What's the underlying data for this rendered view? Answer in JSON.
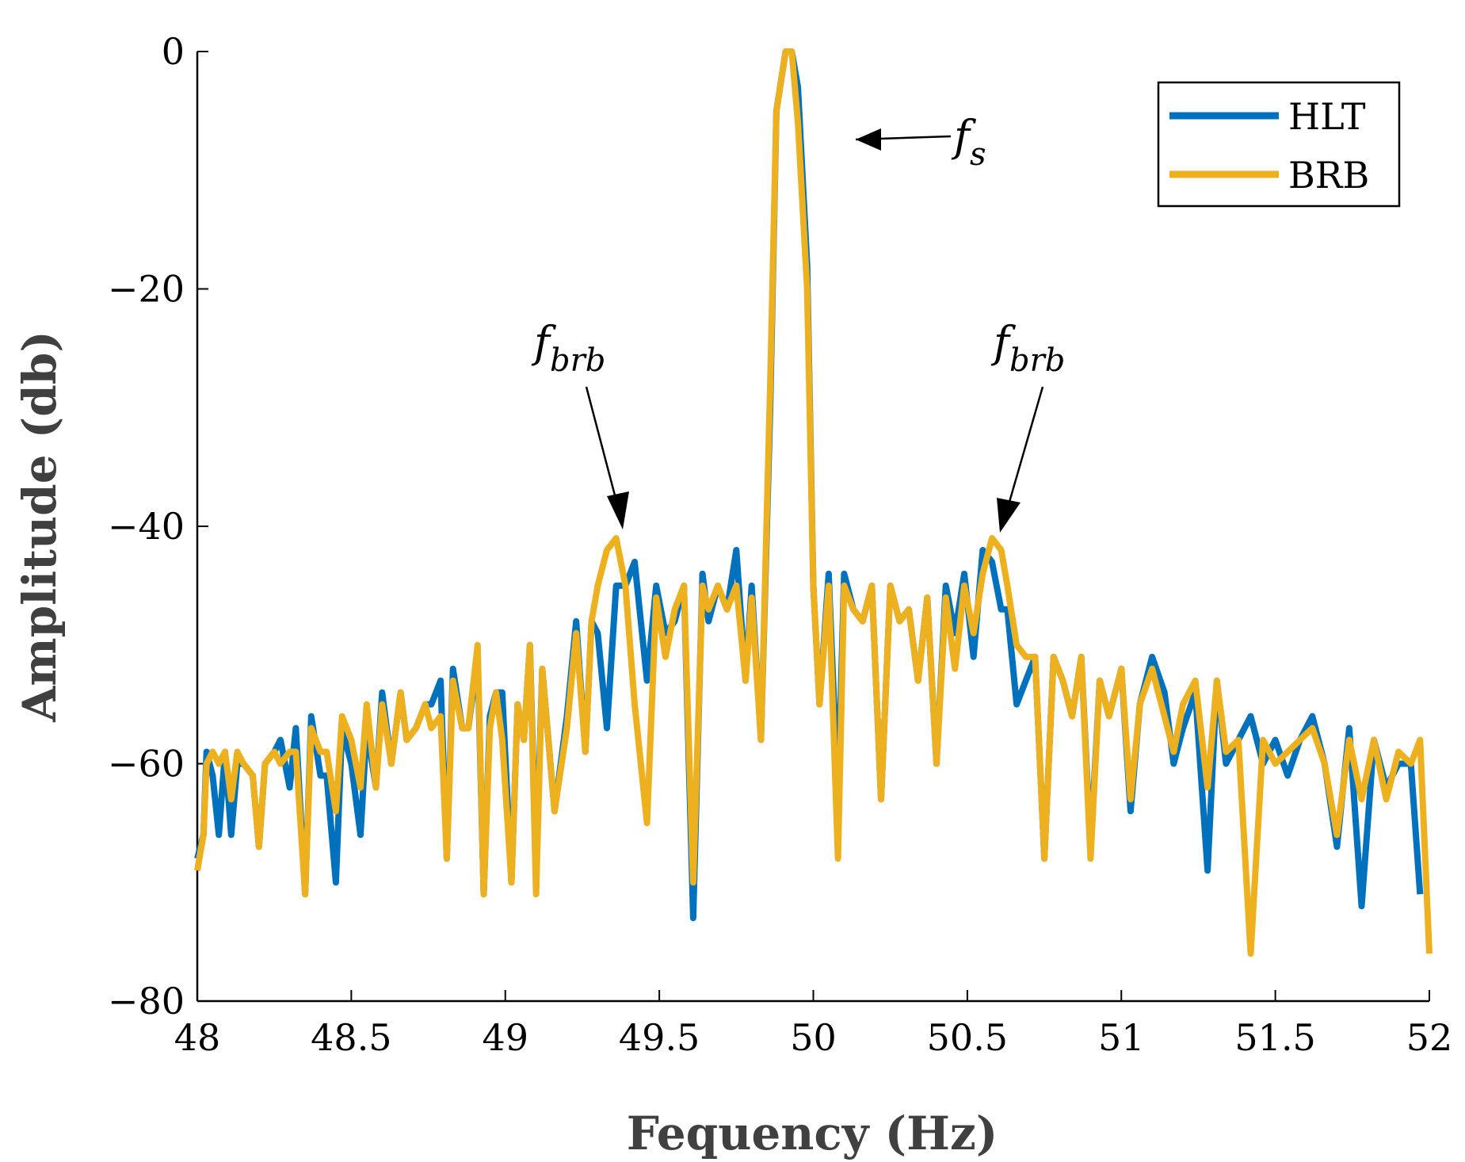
{
  "chart_data": {
    "type": "line",
    "title": "",
    "xlabel": "Fequency (Hz)",
    "ylabel": "Amplitude (db)",
    "xlim": [
      48,
      52
    ],
    "ylim": [
      -80,
      0
    ],
    "xticks": [
      48,
      48.5,
      49,
      49.5,
      50,
      50.5,
      51,
      51.5,
      52
    ],
    "xtick_labels": [
      "48",
      "48.5",
      "49",
      "49.5",
      "50",
      "50.5",
      "51",
      "51.5",
      "52"
    ],
    "yticks": [
      0,
      -20,
      -40,
      -60,
      -80
    ],
    "ytick_labels": [
      "0",
      "−20",
      "−40",
      "−60",
      "−80"
    ],
    "grid": false,
    "legend_position": "top-right",
    "series": [
      {
        "name": "HLT",
        "color": "#0072BD",
        "points": [
          [
            48.0,
            -68
          ],
          [
            48.02,
            -66
          ],
          [
            48.03,
            -59
          ],
          [
            48.05,
            -61
          ],
          [
            48.07,
            -66
          ],
          [
            48.09,
            -59
          ],
          [
            48.11,
            -66
          ],
          [
            48.13,
            -60
          ],
          [
            48.15,
            -60
          ],
          [
            48.18,
            -61
          ],
          [
            48.2,
            -67
          ],
          [
            48.22,
            -60
          ],
          [
            48.25,
            -59
          ],
          [
            48.27,
            -58
          ],
          [
            48.3,
            -62
          ],
          [
            48.32,
            -57
          ],
          [
            48.35,
            -71
          ],
          [
            48.37,
            -56
          ],
          [
            48.4,
            -61
          ],
          [
            48.42,
            -61
          ],
          [
            48.45,
            -70
          ],
          [
            48.47,
            -57
          ],
          [
            48.5,
            -60
          ],
          [
            48.53,
            -66
          ],
          [
            48.55,
            -57
          ],
          [
            48.58,
            -62
          ],
          [
            48.6,
            -54
          ],
          [
            48.63,
            -60
          ],
          [
            48.66,
            -54
          ],
          [
            48.68,
            -58
          ],
          [
            48.71,
            -57
          ],
          [
            48.74,
            -55
          ],
          [
            48.76,
            -55
          ],
          [
            48.79,
            -53
          ],
          [
            48.81,
            -68
          ],
          [
            48.83,
            -52
          ],
          [
            48.86,
            -57
          ],
          [
            48.88,
            -57
          ],
          [
            48.91,
            -51
          ],
          [
            48.93,
            -71
          ],
          [
            48.95,
            -56
          ],
          [
            48.97,
            -54
          ],
          [
            48.99,
            -54
          ],
          [
            49.02,
            -70
          ],
          [
            49.04,
            -55
          ],
          [
            49.06,
            -58
          ],
          [
            49.08,
            -50
          ],
          [
            49.1,
            -69
          ],
          [
            49.12,
            -52
          ],
          [
            49.16,
            -64
          ],
          [
            49.2,
            -56
          ],
          [
            49.23,
            -48
          ],
          [
            49.26,
            -59
          ],
          [
            49.28,
            -48
          ],
          [
            49.3,
            -49
          ],
          [
            49.33,
            -57
          ],
          [
            49.36,
            -45
          ],
          [
            49.39,
            -45
          ],
          [
            49.42,
            -43
          ],
          [
            49.46,
            -53
          ],
          [
            49.49,
            -45
          ],
          [
            49.52,
            -49
          ],
          [
            49.55,
            -48
          ],
          [
            49.58,
            -45
          ],
          [
            49.61,
            -73
          ],
          [
            49.64,
            -44
          ],
          [
            49.66,
            -48
          ],
          [
            49.69,
            -45
          ],
          [
            49.72,
            -47
          ],
          [
            49.75,
            -42
          ],
          [
            49.78,
            -53
          ],
          [
            49.8,
            -45
          ],
          [
            49.83,
            -58
          ],
          [
            49.86,
            -30
          ],
          [
            49.88,
            -5
          ],
          [
            49.91,
            0
          ],
          [
            49.93,
            0
          ],
          [
            49.95,
            -3
          ],
          [
            49.98,
            -18
          ],
          [
            50.0,
            -45
          ],
          [
            50.02,
            -55
          ],
          [
            50.05,
            -44
          ],
          [
            50.08,
            -63
          ],
          [
            50.1,
            -44
          ],
          [
            50.13,
            -47
          ],
          [
            50.16,
            -48
          ],
          [
            50.19,
            -45
          ],
          [
            50.22,
            -63
          ],
          [
            50.25,
            -45
          ],
          [
            50.28,
            -48
          ],
          [
            50.31,
            -47
          ],
          [
            50.34,
            -53
          ],
          [
            50.37,
            -46
          ],
          [
            50.4,
            -60
          ],
          [
            50.43,
            -45
          ],
          [
            50.46,
            -49
          ],
          [
            50.49,
            -44
          ],
          [
            50.52,
            -51
          ],
          [
            50.55,
            -42
          ],
          [
            50.58,
            -43
          ],
          [
            50.61,
            -47
          ],
          [
            50.63,
            -47
          ],
          [
            50.66,
            -55
          ],
          [
            50.69,
            -53
          ],
          [
            50.72,
            -51
          ],
          [
            50.75,
            -68
          ],
          [
            50.78,
            -51
          ],
          [
            50.81,
            -53
          ],
          [
            50.84,
            -56
          ],
          [
            50.87,
            -51
          ],
          [
            50.9,
            -67
          ],
          [
            50.93,
            -53
          ],
          [
            50.96,
            -56
          ],
          [
            51.0,
            -52
          ],
          [
            51.03,
            -64
          ],
          [
            51.06,
            -55
          ],
          [
            51.1,
            -51
          ],
          [
            51.14,
            -54
          ],
          [
            51.17,
            -60
          ],
          [
            51.2,
            -57
          ],
          [
            51.24,
            -54
          ],
          [
            51.28,
            -69
          ],
          [
            51.31,
            -53
          ],
          [
            51.34,
            -60
          ],
          [
            51.38,
            -58
          ],
          [
            51.42,
            -56
          ],
          [
            51.46,
            -60
          ],
          [
            51.5,
            -58
          ],
          [
            51.54,
            -61
          ],
          [
            51.58,
            -58
          ],
          [
            51.62,
            -56
          ],
          [
            51.66,
            -60
          ],
          [
            51.7,
            -67
          ],
          [
            51.74,
            -57
          ],
          [
            51.78,
            -72
          ],
          [
            51.82,
            -58
          ],
          [
            51.86,
            -62
          ],
          [
            51.9,
            -60
          ],
          [
            51.94,
            -60
          ],
          [
            51.97,
            -71
          ]
        ]
      },
      {
        "name": "BRB",
        "color": "#EDB120",
        "points": [
          [
            48.0,
            -69
          ],
          [
            48.02,
            -66
          ],
          [
            48.03,
            -60
          ],
          [
            48.05,
            -59
          ],
          [
            48.07,
            -60
          ],
          [
            48.09,
            -59
          ],
          [
            48.11,
            -63
          ],
          [
            48.13,
            -59
          ],
          [
            48.15,
            -60
          ],
          [
            48.18,
            -61
          ],
          [
            48.2,
            -67
          ],
          [
            48.22,
            -60
          ],
          [
            48.25,
            -59
          ],
          [
            48.27,
            -60
          ],
          [
            48.3,
            -59
          ],
          [
            48.32,
            -59
          ],
          [
            48.35,
            -71
          ],
          [
            48.37,
            -57
          ],
          [
            48.4,
            -59
          ],
          [
            48.42,
            -59
          ],
          [
            48.45,
            -64
          ],
          [
            48.47,
            -56
          ],
          [
            48.5,
            -58
          ],
          [
            48.53,
            -62
          ],
          [
            48.55,
            -55
          ],
          [
            48.58,
            -62
          ],
          [
            48.6,
            -55
          ],
          [
            48.63,
            -60
          ],
          [
            48.66,
            -54
          ],
          [
            48.68,
            -58
          ],
          [
            48.71,
            -57
          ],
          [
            48.74,
            -55
          ],
          [
            48.76,
            -57
          ],
          [
            48.79,
            -56
          ],
          [
            48.81,
            -68
          ],
          [
            48.83,
            -53
          ],
          [
            48.86,
            -57
          ],
          [
            48.88,
            -57
          ],
          [
            48.91,
            -50
          ],
          [
            48.93,
            -71
          ],
          [
            48.95,
            -57
          ],
          [
            48.97,
            -54
          ],
          [
            48.99,
            -58
          ],
          [
            49.02,
            -70
          ],
          [
            49.04,
            -55
          ],
          [
            49.06,
            -58
          ],
          [
            49.08,
            -50
          ],
          [
            49.1,
            -71
          ],
          [
            49.12,
            -52
          ],
          [
            49.16,
            -64
          ],
          [
            49.2,
            -57
          ],
          [
            49.23,
            -49
          ],
          [
            49.26,
            -59
          ],
          [
            49.28,
            -48
          ],
          [
            49.3,
            -45
          ],
          [
            49.33,
            -42
          ],
          [
            49.36,
            -41
          ],
          [
            49.39,
            -45
          ],
          [
            49.42,
            -55
          ],
          [
            49.46,
            -65
          ],
          [
            49.49,
            -46
          ],
          [
            49.52,
            -51
          ],
          [
            49.55,
            -47
          ],
          [
            49.58,
            -45
          ],
          [
            49.61,
            -70
          ],
          [
            49.64,
            -45
          ],
          [
            49.66,
            -47
          ],
          [
            49.69,
            -45
          ],
          [
            49.72,
            -47
          ],
          [
            49.75,
            -45
          ],
          [
            49.78,
            -53
          ],
          [
            49.8,
            -46
          ],
          [
            49.83,
            -58
          ],
          [
            49.86,
            -28
          ],
          [
            49.88,
            -5
          ],
          [
            49.91,
            0
          ],
          [
            49.93,
            0
          ],
          [
            49.95,
            -6
          ],
          [
            49.98,
            -20
          ],
          [
            50.0,
            -45
          ],
          [
            50.02,
            -55
          ],
          [
            50.05,
            -45
          ],
          [
            50.08,
            -68
          ],
          [
            50.1,
            -45
          ],
          [
            50.13,
            -47
          ],
          [
            50.16,
            -48
          ],
          [
            50.19,
            -45
          ],
          [
            50.22,
            -63
          ],
          [
            50.25,
            -45
          ],
          [
            50.28,
            -48
          ],
          [
            50.31,
            -47
          ],
          [
            50.34,
            -53
          ],
          [
            50.37,
            -46
          ],
          [
            50.4,
            -60
          ],
          [
            50.43,
            -46
          ],
          [
            50.46,
            -52
          ],
          [
            50.49,
            -45
          ],
          [
            50.52,
            -49
          ],
          [
            50.55,
            -44
          ],
          [
            50.58,
            -41
          ],
          [
            50.61,
            -42
          ],
          [
            50.63,
            -45
          ],
          [
            50.66,
            -50
          ],
          [
            50.69,
            -51
          ],
          [
            50.72,
            -51
          ],
          [
            50.75,
            -68
          ],
          [
            50.78,
            -51
          ],
          [
            50.81,
            -53
          ],
          [
            50.84,
            -56
          ],
          [
            50.87,
            -51
          ],
          [
            50.9,
            -68
          ],
          [
            50.93,
            -53
          ],
          [
            50.96,
            -56
          ],
          [
            51.0,
            -52
          ],
          [
            51.03,
            -63
          ],
          [
            51.06,
            -55
          ],
          [
            51.1,
            -52
          ],
          [
            51.14,
            -56
          ],
          [
            51.17,
            -59
          ],
          [
            51.2,
            -55
          ],
          [
            51.24,
            -53
          ],
          [
            51.28,
            -62
          ],
          [
            51.31,
            -53
          ],
          [
            51.34,
            -59
          ],
          [
            51.38,
            -58
          ],
          [
            51.42,
            -76
          ],
          [
            51.46,
            -58
          ],
          [
            51.5,
            -60
          ],
          [
            51.54,
            -59
          ],
          [
            51.58,
            -58
          ],
          [
            51.62,
            -57
          ],
          [
            51.66,
            -60
          ],
          [
            51.7,
            -66
          ],
          [
            51.74,
            -58
          ],
          [
            51.78,
            -63
          ],
          [
            51.82,
            -58
          ],
          [
            51.86,
            -63
          ],
          [
            51.9,
            -59
          ],
          [
            51.94,
            -60
          ],
          [
            51.97,
            -58
          ],
          [
            52.0,
            -76
          ]
        ]
      }
    ],
    "annotations": [
      {
        "base": "f",
        "sub": "s",
        "points_to": [
          50.13,
          -7.5
        ]
      },
      {
        "base": "f",
        "sub": "brb",
        "points_to": [
          49.39,
          -40.5
        ]
      },
      {
        "base": "f",
        "sub": "brb",
        "points_to": [
          50.6,
          -40.5
        ]
      }
    ]
  }
}
